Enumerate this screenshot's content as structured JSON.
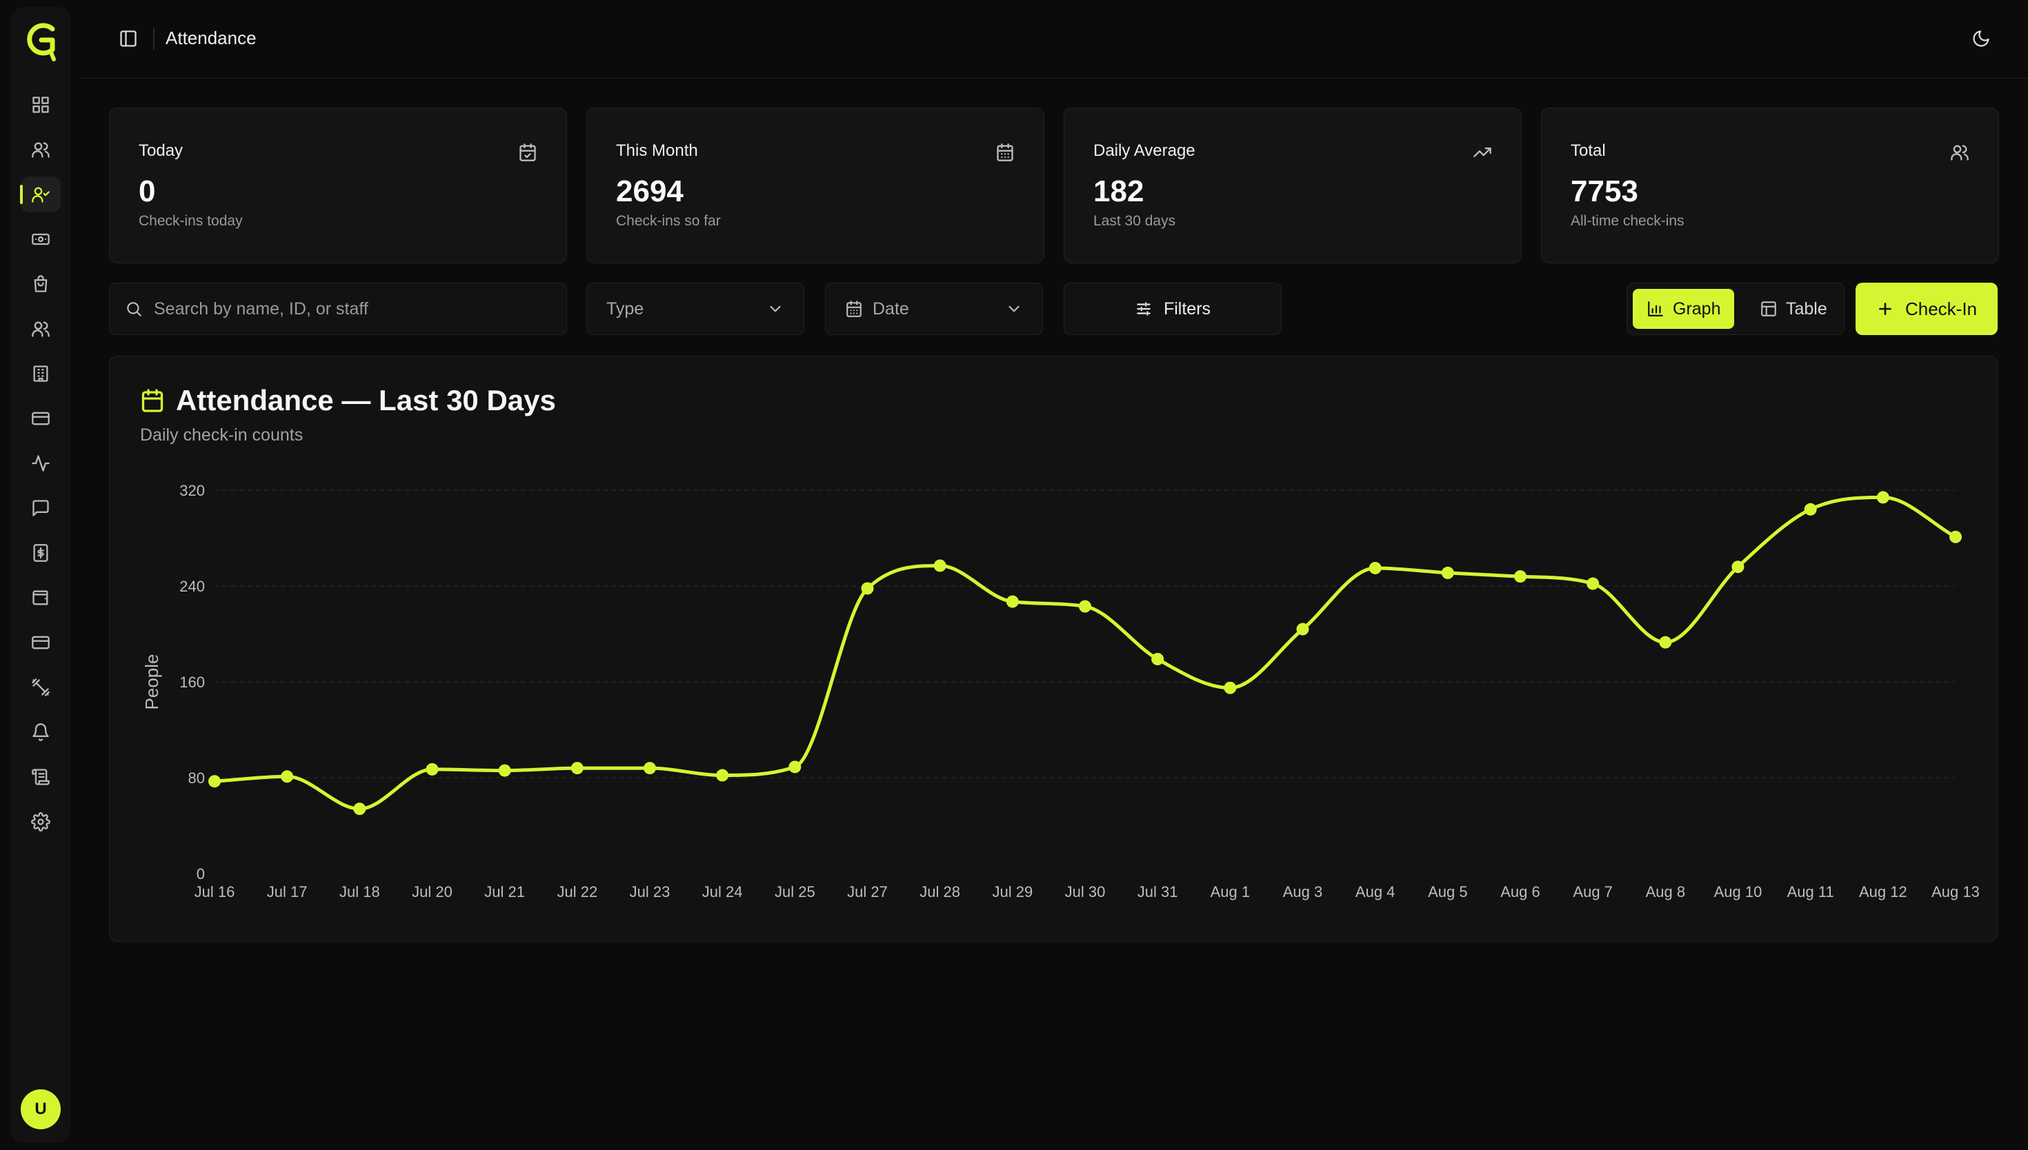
{
  "header": {
    "title": "Attendance"
  },
  "sidebar": {
    "logo_letter": "G",
    "items": [
      {
        "icon": "dashboard-icon"
      },
      {
        "icon": "users-icon"
      },
      {
        "icon": "user-check-icon",
        "active": true
      },
      {
        "icon": "banknote-icon"
      },
      {
        "icon": "shopping-bag-icon"
      },
      {
        "icon": "group-icon"
      },
      {
        "icon": "building-icon"
      },
      {
        "icon": "credit-card-icon"
      },
      {
        "icon": "activity-icon"
      },
      {
        "icon": "message-icon"
      },
      {
        "icon": "dollar-receipt-icon"
      },
      {
        "icon": "wallet-icon"
      },
      {
        "icon": "card-icon"
      },
      {
        "icon": "dumbbell-icon"
      },
      {
        "icon": "bell-icon"
      },
      {
        "icon": "scroll-icon"
      },
      {
        "icon": "settings-icon"
      }
    ],
    "avatar_initial": "U"
  },
  "stats": [
    {
      "label": "Today",
      "value": "0",
      "sub": "Check-ins today",
      "icon": "calendar-check-icon"
    },
    {
      "label": "This Month",
      "value": "2694",
      "sub": "Check-ins so far",
      "icon": "calendar-icon"
    },
    {
      "label": "Daily Average",
      "value": "182",
      "sub": "Last 30 days",
      "icon": "trending-up-icon"
    },
    {
      "label": "Total",
      "value": "7753",
      "sub": "All-time check-ins",
      "icon": "users-icon"
    }
  ],
  "toolbar": {
    "search_placeholder": "Search by name, ID, or staff",
    "type_label": "Type",
    "date_label": "Date",
    "filters_label": "Filters",
    "graph_label": "Graph",
    "table_label": "Table",
    "checkin_label": "Check-In"
  },
  "chart": {
    "title": "Attendance — Last 30 Days",
    "subtitle": "Daily check-in counts"
  },
  "chart_data": {
    "type": "line",
    "x": [
      "Jul 16",
      "Jul 17",
      "Jul 18",
      "Jul 20",
      "Jul 21",
      "Jul 22",
      "Jul 23",
      "Jul 24",
      "Jul 25",
      "Jul 27",
      "Jul 28",
      "Jul 29",
      "Jul 30",
      "Jul 31",
      "Aug 1",
      "Aug 3",
      "Aug 4",
      "Aug 5",
      "Aug 6",
      "Aug 7",
      "Aug 8",
      "Aug 10",
      "Aug 11",
      "Aug 12",
      "Aug 13"
    ],
    "series": [
      {
        "values": [
          77,
          81,
          54,
          87,
          86,
          88,
          88,
          82,
          89,
          238,
          257,
          227,
          223,
          179,
          155,
          204,
          255,
          251,
          248,
          242,
          193,
          256,
          304,
          314,
          281
        ]
      }
    ],
    "ylabel": "People",
    "xlabel": "",
    "ylim": [
      0,
      320
    ],
    "yticks": [
      0,
      80,
      160,
      240,
      320
    ],
    "grid": true,
    "color": "#d6f531"
  }
}
